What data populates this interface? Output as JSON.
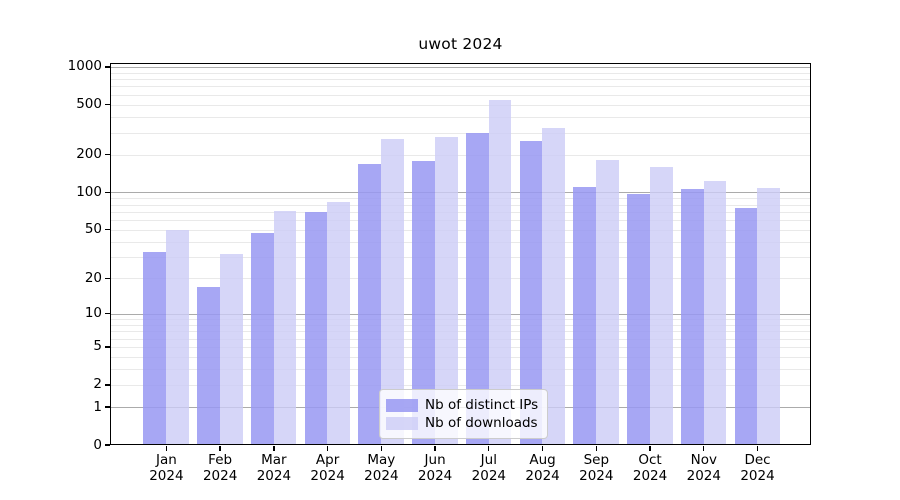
{
  "chart_data": {
    "type": "bar",
    "title": "uwot 2024",
    "categories": [
      "Jan 2024",
      "Feb 2024",
      "Mar 2024",
      "Apr 2024",
      "May 2024",
      "Jun 2024",
      "Jul 2024",
      "Aug 2024",
      "Sep 2024",
      "Oct 2024",
      "Nov 2024",
      "Dec 2024"
    ],
    "series": [
      {
        "name": "Nb of distinct IPs",
        "color": "#9898f2",
        "fill_alpha": 0.85,
        "values": [
          33,
          17,
          47,
          70,
          169,
          178,
          298,
          258,
          111,
          97,
          107,
          75
        ]
      },
      {
        "name": "Nb of downloads",
        "color": "#ccccf6",
        "fill_alpha": 0.8,
        "values": [
          50,
          32,
          71,
          84,
          267,
          277,
          546,
          327,
          182,
          160,
          124,
          109
        ]
      }
    ],
    "xlabel": "",
    "ylabel": "",
    "yscale": "log10(1+y)",
    "ylim": [
      0,
      1075
    ],
    "y_ticks": [
      0,
      1,
      2,
      5,
      10,
      20,
      50,
      100,
      200,
      500,
      1000
    ],
    "grid": "horizontal major+minor",
    "grid_major_color": "#ababab",
    "grid_minor_color": "#e9e9e9",
    "spine_color": "#000000",
    "legend_position": "lower center",
    "background_color": "#ffffff"
  }
}
